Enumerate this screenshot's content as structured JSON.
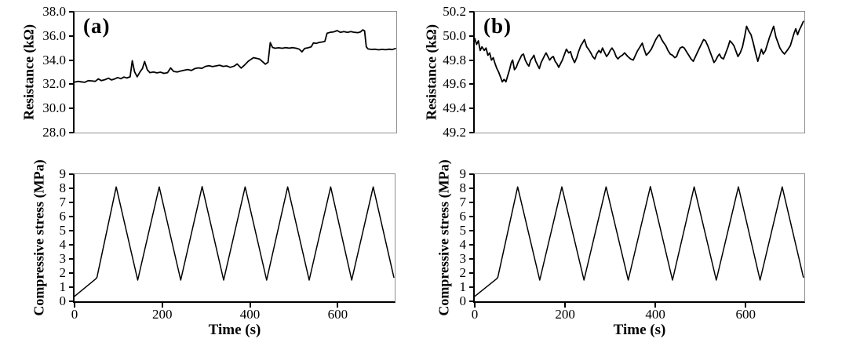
{
  "figure": {
    "background": "#ffffff",
    "line_color": "#000000",
    "frame_color": "#8f8f8f",
    "tick_color": "#000000"
  },
  "chart_data": [
    {
      "id": "resistance-a",
      "type": "line",
      "panel_label": "(a)",
      "ylabel": "Resistance (kΩ)",
      "xlabel": "",
      "ylim": [
        28.0,
        38.0
      ],
      "ytick_values": [
        38.0,
        36.0,
        34.0,
        32.0,
        30.0,
        28.0
      ],
      "ytick_labels": [
        "38.0",
        "36.0",
        "34.0",
        "32.0",
        "30.0",
        "28.0"
      ],
      "xlim": [
        0,
        730
      ],
      "xtick_values": [],
      "xtick_labels": [],
      "grid": false,
      "legend": "none",
      "series": [
        [
          0,
          32.18
        ],
        [
          8,
          32.24
        ],
        [
          15,
          32.2
        ],
        [
          23,
          32.16
        ],
        [
          31,
          32.3
        ],
        [
          39,
          32.28
        ],
        [
          47,
          32.24
        ],
        [
          54,
          32.44
        ],
        [
          61,
          32.3
        ],
        [
          69,
          32.38
        ],
        [
          77,
          32.5
        ],
        [
          84,
          32.36
        ],
        [
          91,
          32.44
        ],
        [
          98,
          32.56
        ],
        [
          105,
          32.46
        ],
        [
          112,
          32.6
        ],
        [
          119,
          32.52
        ],
        [
          126,
          32.62
        ],
        [
          131,
          33.95
        ],
        [
          136,
          33.05
        ],
        [
          142,
          32.62
        ],
        [
          149,
          33.05
        ],
        [
          154,
          33.3
        ],
        [
          159,
          33.88
        ],
        [
          165,
          33.2
        ],
        [
          171,
          32.96
        ],
        [
          179,
          33.02
        ],
        [
          187,
          32.94
        ],
        [
          195,
          33.0
        ],
        [
          203,
          32.9
        ],
        [
          211,
          32.96
        ],
        [
          218,
          33.35
        ],
        [
          225,
          33.06
        ],
        [
          233,
          33.02
        ],
        [
          241,
          33.1
        ],
        [
          249,
          33.16
        ],
        [
          257,
          33.22
        ],
        [
          265,
          33.14
        ],
        [
          273,
          33.3
        ],
        [
          281,
          33.36
        ],
        [
          289,
          33.32
        ],
        [
          297,
          33.48
        ],
        [
          305,
          33.54
        ],
        [
          313,
          33.46
        ],
        [
          321,
          33.52
        ],
        [
          329,
          33.58
        ],
        [
          337,
          33.48
        ],
        [
          345,
          33.52
        ],
        [
          353,
          33.4
        ],
        [
          362,
          33.5
        ],
        [
          369,
          33.68
        ],
        [
          378,
          33.34
        ],
        [
          386,
          33.6
        ],
        [
          394,
          33.9
        ],
        [
          400,
          34.06
        ],
        [
          406,
          34.2
        ],
        [
          413,
          34.14
        ],
        [
          420,
          34.08
        ],
        [
          427,
          33.86
        ],
        [
          433,
          33.66
        ],
        [
          439,
          33.82
        ],
        [
          444,
          35.45
        ],
        [
          449,
          35.05
        ],
        [
          455,
          34.98
        ],
        [
          463,
          35.02
        ],
        [
          471,
          34.98
        ],
        [
          479,
          35.03
        ],
        [
          487,
          34.99
        ],
        [
          495,
          35.03
        ],
        [
          503,
          34.98
        ],
        [
          510,
          34.9
        ],
        [
          516,
          34.68
        ],
        [
          522,
          34.96
        ],
        [
          530,
          35.02
        ],
        [
          537,
          35.1
        ],
        [
          542,
          35.42
        ],
        [
          548,
          35.38
        ],
        [
          555,
          35.46
        ],
        [
          562,
          35.5
        ],
        [
          568,
          35.55
        ],
        [
          573,
          36.22
        ],
        [
          580,
          36.3
        ],
        [
          588,
          36.34
        ],
        [
          596,
          36.44
        ],
        [
          603,
          36.3
        ],
        [
          611,
          36.36
        ],
        [
          619,
          36.3
        ],
        [
          627,
          36.36
        ],
        [
          635,
          36.3
        ],
        [
          643,
          36.27
        ],
        [
          649,
          36.34
        ],
        [
          654,
          36.5
        ],
        [
          658,
          36.42
        ],
        [
          662,
          35.1
        ],
        [
          666,
          34.92
        ],
        [
          674,
          34.88
        ],
        [
          682,
          34.9
        ],
        [
          690,
          34.85
        ],
        [
          698,
          34.89
        ],
        [
          706,
          34.86
        ],
        [
          714,
          34.9
        ],
        [
          721,
          34.87
        ],
        [
          728,
          34.96
        ]
      ]
    },
    {
      "id": "resistance-b",
      "type": "line",
      "panel_label": "(b)",
      "ylabel": "Resistance (kΩ)",
      "xlabel": "",
      "ylim": [
        49.2,
        50.2
      ],
      "ytick_values": [
        50.2,
        50.0,
        49.8,
        49.6,
        49.4,
        49.2
      ],
      "ytick_labels": [
        "50.2",
        "50.0",
        "49.8",
        "49.6",
        "49.4",
        "49.2"
      ],
      "xlim": [
        0,
        730
      ],
      "xtick_values": [],
      "xtick_labels": [],
      "grid": false,
      "legend": "none",
      "series": [
        [
          0,
          49.98
        ],
        [
          4,
          49.93
        ],
        [
          8,
          49.96
        ],
        [
          12,
          49.88
        ],
        [
          16,
          49.91
        ],
        [
          21,
          49.88
        ],
        [
          25,
          49.9
        ],
        [
          29,
          49.84
        ],
        [
          33,
          49.86
        ],
        [
          37,
          49.8
        ],
        [
          41,
          49.82
        ],
        [
          45,
          49.77
        ],
        [
          49,
          49.73
        ],
        [
          53,
          49.7
        ],
        [
          57,
          49.66
        ],
        [
          61,
          49.62
        ],
        [
          65,
          49.64
        ],
        [
          69,
          49.62
        ],
        [
          73,
          49.67
        ],
        [
          77,
          49.72
        ],
        [
          81,
          49.78
        ],
        [
          84,
          49.8
        ],
        [
          88,
          49.72
        ],
        [
          92,
          49.74
        ],
        [
          96,
          49.78
        ],
        [
          100,
          49.81
        ],
        [
          104,
          49.84
        ],
        [
          108,
          49.85
        ],
        [
          112,
          49.8
        ],
        [
          116,
          49.77
        ],
        [
          120,
          49.75
        ],
        [
          124,
          49.8
        ],
        [
          128,
          49.82
        ],
        [
          131,
          49.84
        ],
        [
          135,
          49.79
        ],
        [
          139,
          49.76
        ],
        [
          143,
          49.73
        ],
        [
          147,
          49.78
        ],
        [
          151,
          49.81
        ],
        [
          155,
          49.84
        ],
        [
          158,
          49.86
        ],
        [
          162,
          49.83
        ],
        [
          166,
          49.8
        ],
        [
          170,
          49.82
        ],
        [
          174,
          49.83
        ],
        [
          178,
          49.79
        ],
        [
          182,
          49.77
        ],
        [
          186,
          49.74
        ],
        [
          190,
          49.77
        ],
        [
          194,
          49.8
        ],
        [
          198,
          49.84
        ],
        [
          203,
          49.89
        ],
        [
          208,
          49.86
        ],
        [
          212,
          49.87
        ],
        [
          216,
          49.82
        ],
        [
          221,
          49.78
        ],
        [
          226,
          49.82
        ],
        [
          230,
          49.87
        ],
        [
          235,
          49.92
        ],
        [
          240,
          49.95
        ],
        [
          243,
          49.97
        ],
        [
          248,
          49.91
        ],
        [
          252,
          49.89
        ],
        [
          257,
          49.86
        ],
        [
          261,
          49.83
        ],
        [
          266,
          49.81
        ],
        [
          270,
          49.85
        ],
        [
          275,
          49.88
        ],
        [
          279,
          49.86
        ],
        [
          283,
          49.9
        ],
        [
          288,
          49.86
        ],
        [
          292,
          49.83
        ],
        [
          296,
          49.85
        ],
        [
          300,
          49.88
        ],
        [
          304,
          49.9
        ],
        [
          309,
          49.87
        ],
        [
          313,
          49.83
        ],
        [
          317,
          49.81
        ],
        [
          322,
          49.83
        ],
        [
          327,
          49.84
        ],
        [
          332,
          49.86
        ],
        [
          339,
          49.83
        ],
        [
          345,
          49.81
        ],
        [
          351,
          49.8
        ],
        [
          356,
          49.84
        ],
        [
          361,
          49.88
        ],
        [
          366,
          49.91
        ],
        [
          371,
          49.94
        ],
        [
          375,
          49.89
        ],
        [
          380,
          49.84
        ],
        [
          385,
          49.86
        ],
        [
          391,
          49.89
        ],
        [
          396,
          49.93
        ],
        [
          401,
          49.97
        ],
        [
          406,
          50.0
        ],
        [
          409,
          50.01
        ],
        [
          414,
          49.97
        ],
        [
          419,
          49.94
        ],
        [
          423,
          49.92
        ],
        [
          428,
          49.88
        ],
        [
          433,
          49.85
        ],
        [
          438,
          49.84
        ],
        [
          443,
          49.82
        ],
        [
          447,
          49.83
        ],
        [
          451,
          49.87
        ],
        [
          455,
          49.9
        ],
        [
          460,
          49.91
        ],
        [
          464,
          49.9
        ],
        [
          469,
          49.87
        ],
        [
          474,
          49.84
        ],
        [
          479,
          49.81
        ],
        [
          484,
          49.79
        ],
        [
          489,
          49.83
        ],
        [
          494,
          49.87
        ],
        [
          499,
          49.91
        ],
        [
          503,
          49.94
        ],
        [
          507,
          49.97
        ],
        [
          511,
          49.96
        ],
        [
          516,
          49.92
        ],
        [
          521,
          49.87
        ],
        [
          525,
          49.83
        ],
        [
          530,
          49.78
        ],
        [
          534,
          49.8
        ],
        [
          538,
          49.83
        ],
        [
          542,
          49.85
        ],
        [
          546,
          49.82
        ],
        [
          551,
          49.81
        ],
        [
          556,
          49.86
        ],
        [
          561,
          49.91
        ],
        [
          565,
          49.96
        ],
        [
          570,
          49.94
        ],
        [
          574,
          49.92
        ],
        [
          579,
          49.87
        ],
        [
          583,
          49.83
        ],
        [
          588,
          49.86
        ],
        [
          593,
          49.91
        ],
        [
          598,
          50.0
        ],
        [
          602,
          50.08
        ],
        [
          607,
          50.04
        ],
        [
          612,
          50.01
        ],
        [
          617,
          49.94
        ],
        [
          622,
          49.86
        ],
        [
          627,
          49.79
        ],
        [
          631,
          49.84
        ],
        [
          635,
          49.89
        ],
        [
          639,
          49.85
        ],
        [
          644,
          49.88
        ],
        [
          648,
          49.93
        ],
        [
          653,
          49.99
        ],
        [
          658,
          50.04
        ],
        [
          662,
          50.08
        ],
        [
          667,
          49.99
        ],
        [
          671,
          49.95
        ],
        [
          676,
          49.9
        ],
        [
          681,
          49.87
        ],
        [
          686,
          49.85
        ],
        [
          690,
          49.87
        ],
        [
          694,
          49.89
        ],
        [
          699,
          49.92
        ],
        [
          703,
          49.97
        ],
        [
          707,
          50.02
        ],
        [
          711,
          50.06
        ],
        [
          715,
          50.01
        ],
        [
          719,
          50.05
        ],
        [
          723,
          50.08
        ],
        [
          728,
          50.12
        ]
      ]
    },
    {
      "id": "stress-a",
      "type": "line",
      "panel_label": "",
      "ylabel": "Compressive stress (MPa)",
      "xlabel": "Time (s)",
      "ylim": [
        0,
        9
      ],
      "ytick_values": [
        9,
        8,
        7,
        6,
        5,
        4,
        3,
        2,
        1,
        0
      ],
      "ytick_labels": [
        "9",
        "8",
        "7",
        "6",
        "5",
        "4",
        "3",
        "2",
        "1",
        "0"
      ],
      "xlim": [
        0,
        730
      ],
      "xtick_values": [
        0,
        200,
        400,
        600
      ],
      "xtick_labels": [
        "0",
        "200",
        "400",
        "600"
      ],
      "grid": false,
      "legend": "none",
      "series": [
        [
          0,
          0.35
        ],
        [
          47,
          1.55
        ],
        [
          51,
          1.68
        ],
        [
          95,
          8.1
        ],
        [
          144,
          1.5
        ],
        [
          193,
          8.1
        ],
        [
          242,
          1.5
        ],
        [
          291,
          8.12
        ],
        [
          340,
          1.5
        ],
        [
          389,
          8.1
        ],
        [
          438,
          1.5
        ],
        [
          486,
          8.1
        ],
        [
          535,
          1.5
        ],
        [
          584,
          8.1
        ],
        [
          632,
          1.5
        ],
        [
          681,
          8.1
        ],
        [
          728,
          1.7
        ]
      ]
    },
    {
      "id": "stress-b",
      "type": "line",
      "panel_label": "",
      "ylabel": "Compressive stress (MPa)",
      "xlabel": "Time (s)",
      "ylim": [
        0,
        9
      ],
      "ytick_values": [
        9,
        8,
        7,
        6,
        5,
        4,
        3,
        2,
        1,
        0
      ],
      "ytick_labels": [
        "9",
        "8",
        "7",
        "6",
        "5",
        "4",
        "3",
        "2",
        "1",
        "0"
      ],
      "xlim": [
        0,
        730
      ],
      "xtick_values": [
        0,
        200,
        400,
        600
      ],
      "xtick_labels": [
        "0",
        "200",
        "400",
        "600"
      ],
      "grid": false,
      "legend": "none",
      "series": [
        [
          0,
          0.35
        ],
        [
          47,
          1.55
        ],
        [
          51,
          1.68
        ],
        [
          95,
          8.1
        ],
        [
          144,
          1.5
        ],
        [
          193,
          8.1
        ],
        [
          242,
          1.5
        ],
        [
          291,
          8.1
        ],
        [
          340,
          1.5
        ],
        [
          389,
          8.12
        ],
        [
          438,
          1.5
        ],
        [
          486,
          8.1
        ],
        [
          535,
          1.5
        ],
        [
          584,
          8.1
        ],
        [
          632,
          1.5
        ],
        [
          681,
          8.1
        ],
        [
          728,
          1.7
        ]
      ]
    }
  ]
}
